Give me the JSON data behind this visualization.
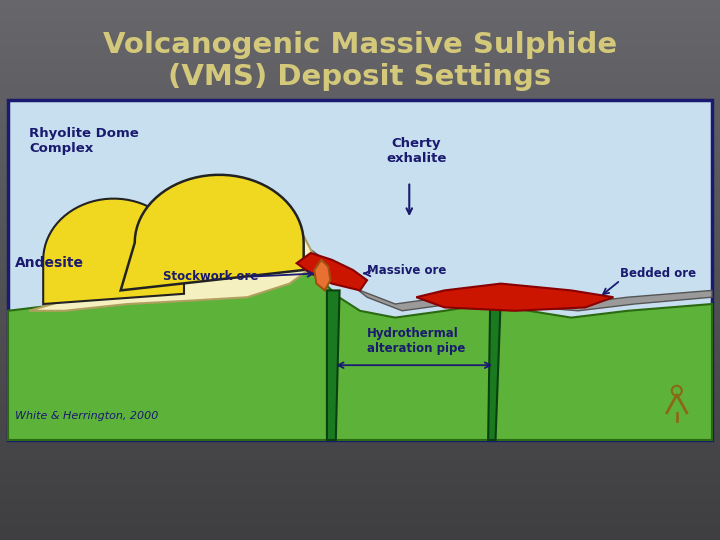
{
  "title_line1": "Volcanogenic Massive Sulphide",
  "title_line2": "(VMS) Deposit Settings",
  "title_color": "#d4c87a",
  "title_fontsize": 21,
  "diagram_bg": "#c8dff0",
  "diagram_border": "#1a1a6e",
  "ground_color": "#5db33a",
  "ground_edge": "#2a6a10",
  "andesite_label": "Andesite",
  "rhyolite_label": "Rhyolite Dome\nComplex",
  "cherty_label": "Cherty\nexhalite",
  "stockwork_label": "Stockwork ore",
  "massive_label": "Massive ore",
  "hydrothermal_label": "Hydrothermal\nalteration pipe",
  "bedded_label": "Bedded ore",
  "citation": "White & Herrington, 2000",
  "label_color": "#1a1a6e",
  "yellow_color": "#f0d820",
  "cream_color": "#f5f0c0",
  "red_color": "#cc1500",
  "orange_color": "#e87030",
  "green_pipe": "#1a7a20",
  "green_pipe_edge": "#0a4010",
  "gray_layer": "#9a9a9a",
  "gray_layer_edge": "#555555",
  "dark_outline": "#222222"
}
